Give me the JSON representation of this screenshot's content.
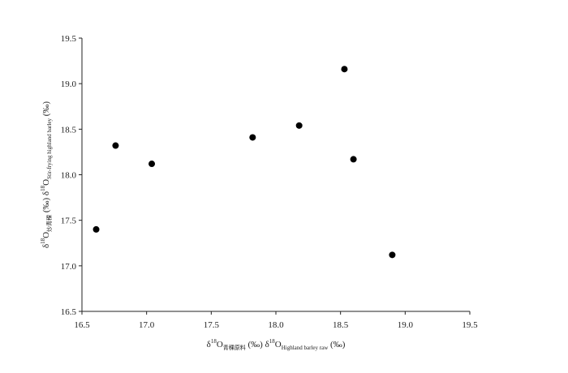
{
  "chart_data": {
    "type": "scatter",
    "title": "",
    "xlabel": {
      "prefix": "δ",
      "sup": "18",
      "parts": [
        {
          "main": "O",
          "sub": "青稞原料"
        },
        {
          "main": " (‰) δ"
        },
        {
          "sup": "18"
        },
        {
          "main": "O",
          "sub": "Highland barley raw"
        },
        {
          "main": " (‰)"
        }
      ]
    },
    "ylabel": {
      "prefix": "δ",
      "sup": "18",
      "parts": [
        {
          "main": "O",
          "sub": "炒青稞"
        },
        {
          "main": " (‰) δ"
        },
        {
          "sup": "18"
        },
        {
          "main": "O",
          "sub": "Stir-frying highland barley"
        },
        {
          "main": " (‰)"
        }
      ]
    },
    "xlim": [
      16.5,
      19.5
    ],
    "ylim": [
      16.5,
      19.5
    ],
    "xticks": [
      "16.5",
      "17.0",
      "17.5",
      "18.0",
      "18.5",
      "19.0",
      "19.5"
    ],
    "yticks": [
      "16.5",
      "17.0",
      "17.5",
      "18.0",
      "18.5",
      "19.0",
      "19.5"
    ],
    "grid": false,
    "series": [
      {
        "points": [
          {
            "x": 16.61,
            "y": 17.4
          },
          {
            "x": 16.76,
            "y": 18.32
          },
          {
            "x": 17.04,
            "y": 18.12
          },
          {
            "x": 17.82,
            "y": 18.41
          },
          {
            "x": 18.18,
            "y": 18.54
          },
          {
            "x": 18.53,
            "y": 19.16
          },
          {
            "x": 18.6,
            "y": 18.17
          },
          {
            "x": 18.9,
            "y": 17.12
          }
        ]
      }
    ]
  }
}
